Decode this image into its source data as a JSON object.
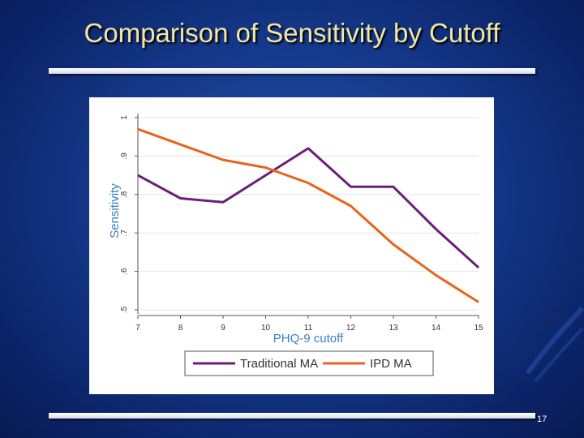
{
  "slide": {
    "title": "Comparison of Sensitivity by Cutoff",
    "page_number": "17"
  },
  "chart_data": {
    "type": "line",
    "title": "",
    "xlabel": "PHQ-9 cutoff",
    "ylabel": "Sensitivity",
    "x": [
      7,
      8,
      9,
      10,
      11,
      12,
      13,
      14,
      15
    ],
    "xticks": [
      "7",
      "8",
      "9",
      "10",
      "11",
      "12",
      "13",
      "14",
      "15"
    ],
    "yticks": [
      ".5",
      ".6",
      ".7",
      ".8",
      ".9",
      "1"
    ],
    "ytick_values": [
      0.5,
      0.6,
      0.7,
      0.8,
      0.9,
      1.0
    ],
    "ylim": [
      0.5,
      1.0
    ],
    "xlim": [
      7,
      15
    ],
    "grid": true,
    "legend_position": "bottom",
    "series": [
      {
        "name": "Traditional MA",
        "color": "#6b1f7a",
        "values": [
          0.85,
          0.79,
          0.78,
          0.85,
          0.92,
          0.82,
          0.82,
          0.71,
          0.61
        ]
      },
      {
        "name": "IPD MA",
        "color": "#e8641e",
        "values": [
          0.97,
          0.93,
          0.89,
          0.87,
          0.83,
          0.77,
          0.67,
          0.59,
          0.52
        ]
      }
    ]
  },
  "colors": {
    "title": "#f2e6a6",
    "background": "#15398a"
  }
}
